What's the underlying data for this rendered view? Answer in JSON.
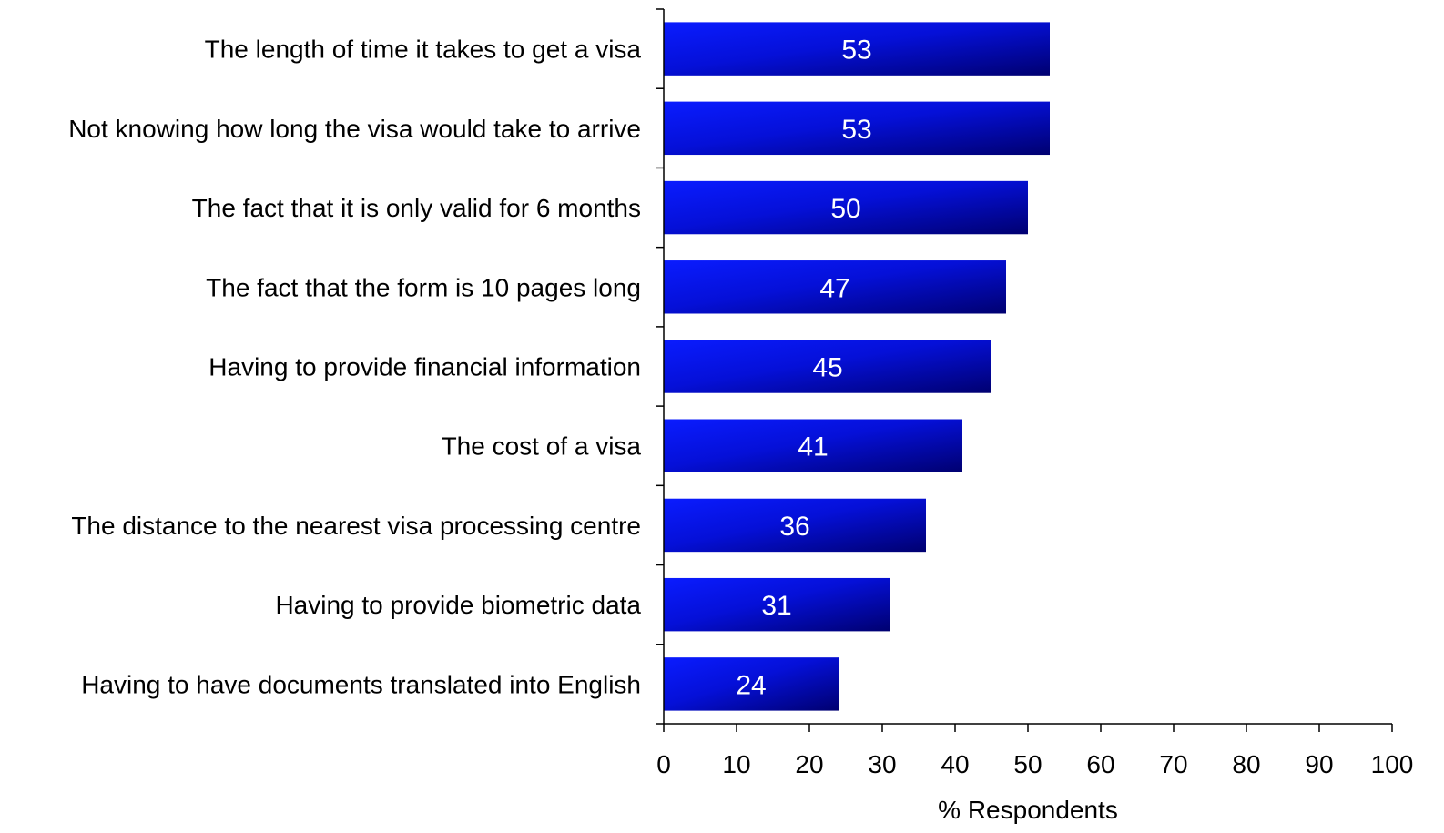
{
  "chart_data": {
    "type": "bar",
    "orientation": "horizontal",
    "categories": [
      "The length of time it takes to get a visa",
      "Not knowing how long the visa would take to arrive",
      "The fact that it is only valid for 6 months",
      "The fact that the form is 10 pages long",
      "Having to provide financial information",
      "The cost of a visa",
      "The distance to the nearest visa processing centre",
      "Having to provide biometric data",
      "Having to have documents translated into English"
    ],
    "values": [
      53,
      53,
      50,
      47,
      45,
      41,
      36,
      31,
      24
    ],
    "data_labels": [
      "53",
      "53",
      "50",
      "47",
      "45",
      "41",
      "36",
      "31",
      "24"
    ],
    "xlabel": "% Respondents",
    "ylabel": "",
    "xlim": [
      0,
      100
    ],
    "x_ticks": [
      "0",
      "10",
      "20",
      "30",
      "40",
      "50",
      "60",
      "70",
      "80",
      "90",
      "100"
    ],
    "grid": false,
    "legend": "none",
    "colors": {
      "bar_light": "#0a1cff",
      "bar_dark": "#000070",
      "axis": "#000000",
      "label_text": "#ffffff"
    }
  }
}
